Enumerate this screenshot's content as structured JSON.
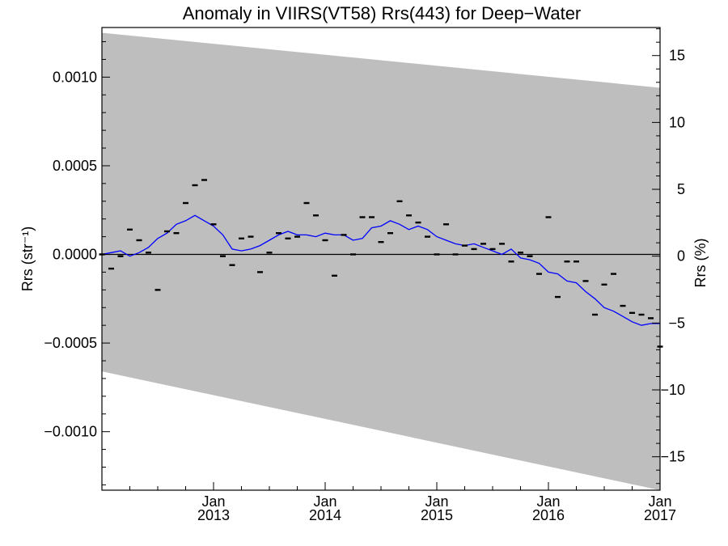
{
  "chart_data": {
    "type": "scatter",
    "title": "Anomaly in VIIRS(VT58) Rrs(443) for Deep−Water",
    "ylabel": "Rrs (str⁻¹)",
    "ylabel2": "Rrs (%)",
    "x_ticks": [
      {
        "month": "Jan",
        "year": "2013",
        "t": 2013.0
      },
      {
        "month": "Jan",
        "year": "2014",
        "t": 2014.0
      },
      {
        "month": "Jan",
        "year": "2015",
        "t": 2015.0
      },
      {
        "month": "Jan",
        "year": "2016",
        "t": 2016.0
      },
      {
        "month": "Jan",
        "year": "2017",
        "t": 2017.0
      }
    ],
    "xlim": [
      2012.0,
      2017.0
    ],
    "ylim": [
      -0.00133,
      0.00128
    ],
    "y_ticks": [
      {
        "value": 0.001,
        "label": "0.0010"
      },
      {
        "value": 0.0005,
        "label": "0.0005"
      },
      {
        "value": 0.0,
        "label": "0.0000"
      },
      {
        "value": -0.0005,
        "label": "−0.0005"
      },
      {
        "value": -0.001,
        "label": "−0.0010"
      }
    ],
    "y2lim": [
      -17.5,
      17.1
    ],
    "y2_ticks": [
      {
        "value": 15,
        "label": "15"
      },
      {
        "value": 10,
        "label": "10"
      },
      {
        "value": 5,
        "label": "5"
      },
      {
        "value": 0,
        "label": "0"
      },
      {
        "value": -5,
        "label": "−5"
      },
      {
        "value": -10,
        "label": "−10"
      },
      {
        "value": -15,
        "label": "−15"
      }
    ],
    "uncertainty_band": {
      "color": "#bebebe",
      "t": [
        2012.0,
        2017.0
      ],
      "upper": [
        0.00125,
        0.00094
      ],
      "lower": [
        -0.00066,
        -0.00133
      ]
    },
    "zero_line": 0.0,
    "monthly_anomaly": {
      "color": "#000000",
      "t": [
        2012.0,
        2012.083,
        2012.167,
        2012.25,
        2012.333,
        2012.417,
        2012.5,
        2012.583,
        2012.667,
        2012.75,
        2012.833,
        2012.917,
        2013.0,
        2013.083,
        2013.167,
        2013.25,
        2013.333,
        2013.417,
        2013.5,
        2013.583,
        2013.667,
        2013.75,
        2013.833,
        2013.917,
        2014.0,
        2014.083,
        2014.167,
        2014.25,
        2014.333,
        2014.417,
        2014.5,
        2014.583,
        2014.667,
        2014.75,
        2014.833,
        2014.917,
        2015.0,
        2015.083,
        2015.167,
        2015.25,
        2015.333,
        2015.417,
        2015.5,
        2015.583,
        2015.667,
        2015.75,
        2015.833,
        2015.917,
        2016.0,
        2016.083,
        2016.167,
        2016.25,
        2016.333,
        2016.417,
        2016.5,
        2016.583,
        2016.667,
        2016.75,
        2016.833,
        2016.917,
        2017.0
      ],
      "values": [
        0.0,
        -8e-05,
        -1e-05,
        0.00014,
        8e-05,
        1e-05,
        -0.0002,
        0.00013,
        0.00012,
        0.00029,
        0.00039,
        0.00042,
        0.00017,
        -1e-05,
        -6e-05,
        9e-05,
        0.0001,
        -0.0001,
        1e-05,
        0.00012,
        9e-05,
        0.0001,
        0.00029,
        0.00022,
        8e-05,
        -0.00012,
        0.00011,
        0.0,
        0.00021,
        0.00021,
        7e-05,
        0.00012,
        0.0003,
        0.00022,
        0.00018,
        0.0001,
        0.0,
        0.00017,
        0.0,
        5e-05,
        3e-05,
        6e-05,
        3e-05,
        6e-05,
        -4e-05,
        1e-05,
        -1e-05,
        -0.00011,
        0.00021,
        -0.00024,
        -4e-05,
        -4e-05,
        -0.00015,
        -0.00034,
        -0.00017,
        -0.00011,
        -0.00029,
        -0.00033,
        -0.00034,
        -0.00036,
        -0.00052
      ]
    },
    "running_mean": {
      "color": "#0000ff",
      "t": [
        2012.0,
        2012.083,
        2012.167,
        2012.25,
        2012.333,
        2012.417,
        2012.5,
        2012.583,
        2012.667,
        2012.75,
        2012.833,
        2012.917,
        2013.0,
        2013.083,
        2013.167,
        2013.25,
        2013.333,
        2013.417,
        2013.5,
        2013.583,
        2013.667,
        2013.75,
        2013.833,
        2013.917,
        2014.0,
        2014.083,
        2014.167,
        2014.25,
        2014.333,
        2014.417,
        2014.5,
        2014.583,
        2014.667,
        2014.75,
        2014.833,
        2014.917,
        2015.0,
        2015.083,
        2015.167,
        2015.25,
        2015.333,
        2015.417,
        2015.5,
        2015.583,
        2015.667,
        2015.75,
        2015.833,
        2015.917,
        2016.0,
        2016.083,
        2016.167,
        2016.25,
        2016.333,
        2016.417,
        2016.5,
        2016.583,
        2016.667,
        2016.75,
        2016.833,
        2016.917,
        2017.0
      ],
      "values": [
        0.0,
        1e-05,
        2e-05,
        -1e-05,
        1e-05,
        4e-05,
        9e-05,
        0.00012,
        0.00017,
        0.00019,
        0.00022,
        0.00019,
        0.00016,
        0.00011,
        3e-05,
        2e-05,
        3e-05,
        5e-05,
        8e-05,
        0.00011,
        0.00013,
        0.00011,
        0.00011,
        0.0001,
        0.00012,
        0.00011,
        0.00011,
        8e-05,
        9e-05,
        0.00015,
        0.00016,
        0.00019,
        0.00017,
        0.00014,
        0.00016,
        0.00014,
        0.0001,
        8e-05,
        6e-05,
        5e-05,
        6e-05,
        4e-05,
        2e-05,
        0.0,
        3e-05,
        -2e-05,
        -3e-05,
        -5e-05,
        -0.0001,
        -0.00011,
        -0.00015,
        -0.00016,
        -0.00021,
        -0.00025,
        -0.0003,
        -0.00032,
        -0.00035,
        -0.00038,
        -0.0004,
        -0.00039,
        -0.00039
      ]
    }
  }
}
